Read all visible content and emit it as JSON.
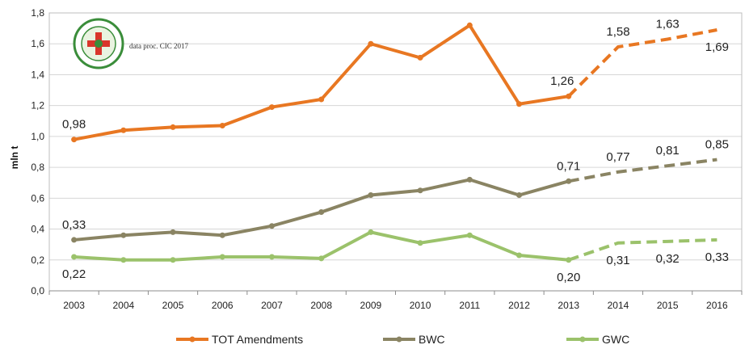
{
  "chart_data": {
    "type": "line",
    "x": [
      "2003",
      "2004",
      "2005",
      "2006",
      "2007",
      "2008",
      "2009",
      "2010",
      "2011",
      "2012",
      "2013",
      "2014",
      "2015",
      "2016"
    ],
    "ylabel": "mln t",
    "ylim": [
      0,
      1.8
    ],
    "yticks": [
      "0,0",
      "0,2",
      "0,4",
      "0,6",
      "0,8",
      "1,0",
      "1,2",
      "1,4",
      "1,6",
      "1,8"
    ],
    "grid": "horizontal",
    "legend_position": "bottom",
    "annotation": "data proc. CIC 2017",
    "series": [
      {
        "name": "TOT Amendments",
        "color": "#e87722",
        "values": [
          0.98,
          1.04,
          1.06,
          1.07,
          1.19,
          1.24,
          1.6,
          1.51,
          1.72,
          1.21,
          1.26,
          1.58,
          1.63,
          1.69
        ],
        "projected_from_index": 10,
        "labels": [
          {
            "index": 0,
            "text": "0,98",
            "pos": "above"
          },
          {
            "index": 10,
            "text": "1,26",
            "pos": "above-left"
          },
          {
            "index": 11,
            "text": "1,58",
            "pos": "above"
          },
          {
            "index": 12,
            "text": "1,63",
            "pos": "above"
          },
          {
            "index": 13,
            "text": "1,69",
            "pos": "below"
          }
        ]
      },
      {
        "name": "BWC",
        "color": "#8a8463",
        "values": [
          0.33,
          0.36,
          0.38,
          0.36,
          0.42,
          0.51,
          0.62,
          0.65,
          0.72,
          0.62,
          0.71,
          0.77,
          0.81,
          0.85
        ],
        "projected_from_index": 10,
        "labels": [
          {
            "index": 0,
            "text": "0,33",
            "pos": "above"
          },
          {
            "index": 10,
            "text": "0,71",
            "pos": "above"
          },
          {
            "index": 11,
            "text": "0,77",
            "pos": "above"
          },
          {
            "index": 12,
            "text": "0,81",
            "pos": "above"
          },
          {
            "index": 13,
            "text": "0,85",
            "pos": "above"
          }
        ]
      },
      {
        "name": "GWC",
        "color": "#9bc26b",
        "values": [
          0.22,
          0.2,
          0.2,
          0.22,
          0.22,
          0.21,
          0.38,
          0.31,
          0.36,
          0.23,
          0.2,
          0.31,
          0.32,
          0.33
        ],
        "projected_from_index": 10,
        "labels": [
          {
            "index": 0,
            "text": "0,22",
            "pos": "below"
          },
          {
            "index": 10,
            "text": "0,20",
            "pos": "below"
          },
          {
            "index": 11,
            "text": "0,31",
            "pos": "below"
          },
          {
            "index": 12,
            "text": "0,32",
            "pos": "below"
          },
          {
            "index": 13,
            "text": "0,33",
            "pos": "below"
          }
        ]
      }
    ]
  }
}
